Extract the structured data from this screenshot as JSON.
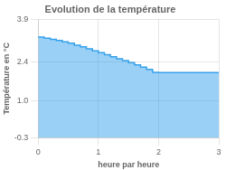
{
  "chart_data": {
    "type": "area",
    "title": "Evolution de la température",
    "x_label": "heure par heure",
    "y_label": "Température en °C",
    "x": [
      0,
      0.1,
      0.2,
      0.3,
      0.4,
      0.5,
      0.6,
      0.7,
      0.8,
      0.9,
      1.0,
      1.1,
      1.2,
      1.3,
      1.4,
      1.5,
      1.6,
      1.7,
      1.8,
      1.9,
      2.0,
      2.1,
      2.2,
      2.3,
      2.4,
      2.5,
      2.6,
      2.7,
      2.8,
      2.9,
      3.0
    ],
    "values": [
      3.3,
      3.27,
      3.23,
      3.19,
      3.15,
      3.1,
      3.05,
      2.98,
      2.92,
      2.85,
      2.78,
      2.71,
      2.64,
      2.57,
      2.5,
      2.43,
      2.36,
      2.28,
      2.2,
      2.12,
      2.02,
      2.01,
      2.01,
      2.01,
      2.01,
      2.01,
      2.01,
      2.01,
      2.01,
      2.01,
      2.01
    ],
    "line_style": "step",
    "xlim": [
      0,
      3
    ],
    "xticks": [
      0,
      1,
      2,
      3
    ],
    "ylim": [
      -0.3,
      3.9
    ],
    "yticks": [
      -0.3,
      {
        "value": 1.0,
        "label": "1.0"
      },
      2.4,
      3.9
    ],
    "grid": true
  }
}
